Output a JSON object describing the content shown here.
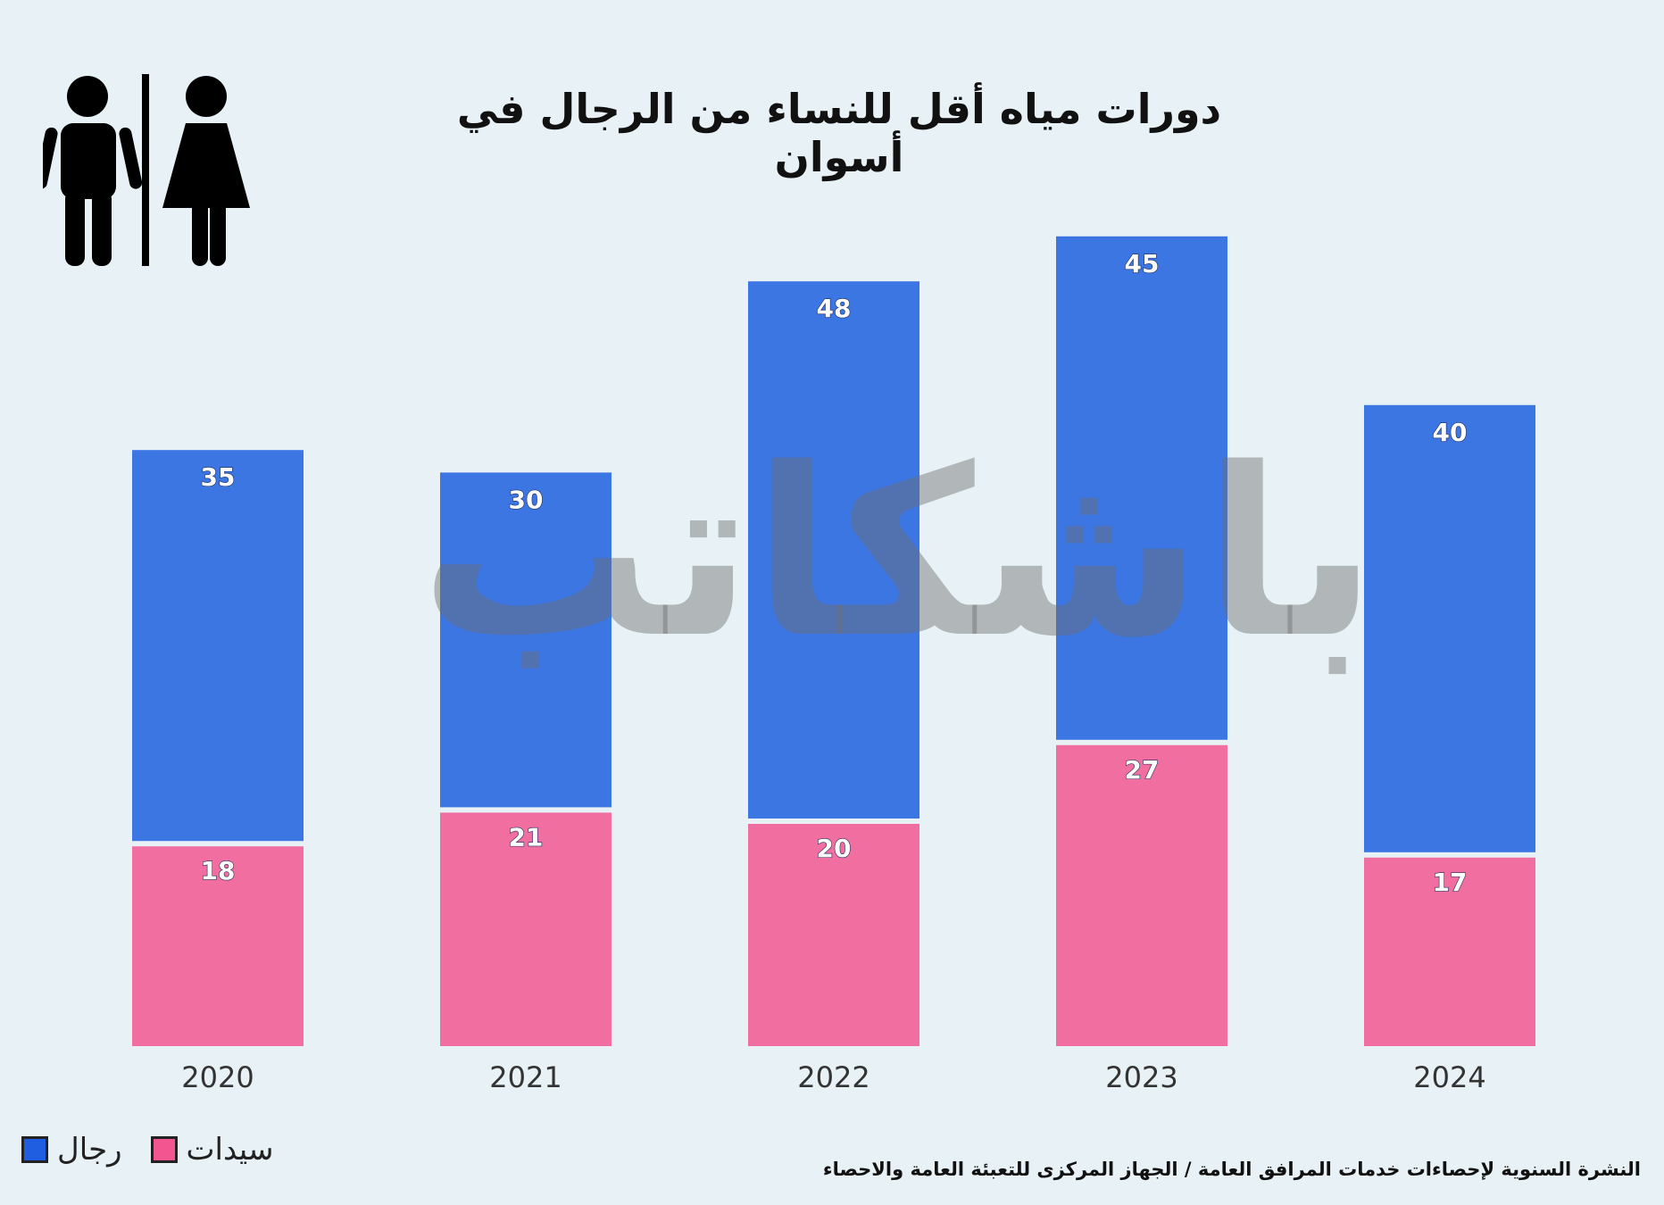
{
  "chart_data": {
    "type": "bar",
    "stacked": true,
    "title": "دورات مياه أقل للنساء من الرجال في أسوان",
    "categories": [
      "2020",
      "2021",
      "2022",
      "2023",
      "2024"
    ],
    "series": [
      {
        "name": "سيدات",
        "color": "#f06ea0",
        "values": [
          18,
          21,
          20,
          27,
          17
        ]
      },
      {
        "name": "رجال",
        "color": "#3b76e3",
        "values": [
          35,
          30,
          48,
          45,
          40
        ]
      }
    ],
    "xlabel": "",
    "ylabel": "",
    "ylim": [
      0,
      72
    ],
    "grid": false,
    "legend": "bottom-left",
    "data_labels": true
  },
  "source": "النشرة السنوية لإحصاءات خدمات المرافق العامة / الجهاز المركزى للتعبئة العامة والاحصاء",
  "watermark": "باشكاتب",
  "icon": "restroom-man-woman-icon",
  "background": "#e7f1f6"
}
